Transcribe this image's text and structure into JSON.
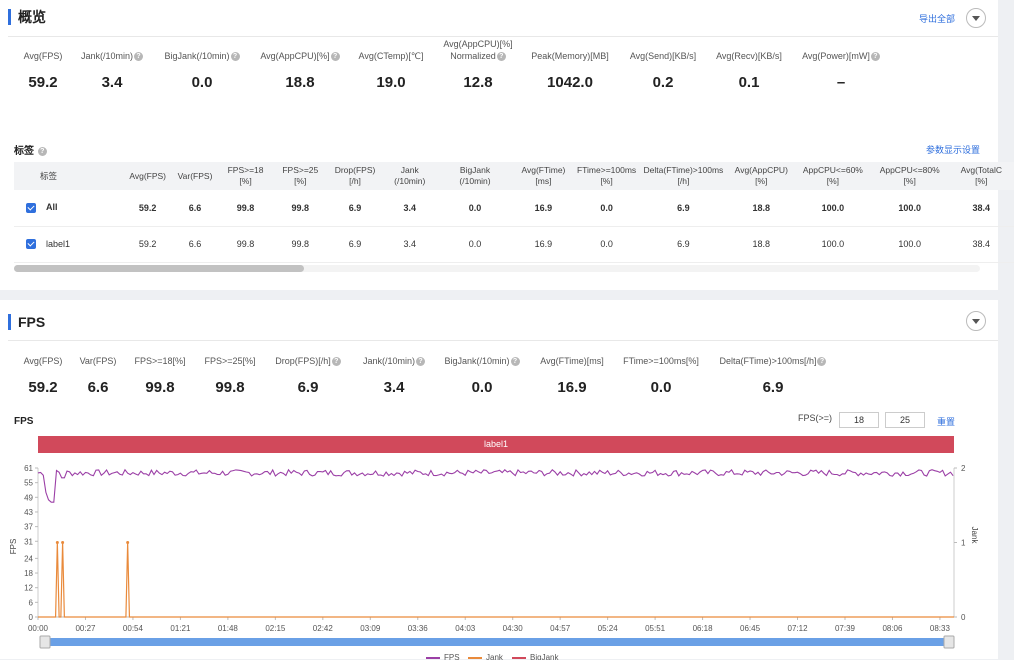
{
  "overview": {
    "title": "概览",
    "export_label": "导出全部",
    "metrics": [
      {
        "label": "Avg(FPS)",
        "value": "59.2",
        "help": false
      },
      {
        "label": "Jank(/10min)",
        "value": "3.4",
        "help": true
      },
      {
        "label": "BigJank(/10min)",
        "value": "0.0",
        "help": true
      },
      {
        "label": "Avg(AppCPU)[%]",
        "value": "18.8",
        "help": true
      },
      {
        "label": "Avg(CTemp)[℃]",
        "value": "19.0",
        "help": false
      },
      {
        "label": "Avg(AppCPU)[%]",
        "label2": "Normalized",
        "value": "12.8",
        "help": true
      },
      {
        "label": "Peak(Memory)[MB]",
        "value": "1042.0",
        "help": false
      },
      {
        "label": "Avg(Send)[KB/s]",
        "value": "0.2",
        "help": false
      },
      {
        "label": "Avg(Recv)[KB/s]",
        "value": "0.1",
        "help": false
      },
      {
        "label": "Avg(Power)[mW]",
        "value": "–",
        "help": true
      }
    ]
  },
  "tags": {
    "title": "标签",
    "settings_label": "参数显示设置",
    "columns": [
      {
        "l1": "标签",
        "l2": ""
      },
      {
        "l1": "Avg(FPS)",
        "l2": ""
      },
      {
        "l1": "Var(FPS)",
        "l2": ""
      },
      {
        "l1": "FPS>=18",
        "l2": "[%]"
      },
      {
        "l1": "FPS>=25",
        "l2": "[%]"
      },
      {
        "l1": "Drop(FPS)",
        "l2": "[/h]"
      },
      {
        "l1": "Jank",
        "l2": "(/10min)"
      },
      {
        "l1": "BigJank",
        "l2": "(/10min)"
      },
      {
        "l1": "Avg(FTime)",
        "l2": "[ms]"
      },
      {
        "l1": "FTime>=100ms",
        "l2": "[%]"
      },
      {
        "l1": "Delta(FTime)>100ms",
        "l2": "[/h]"
      },
      {
        "l1": "Avg(AppCPU)",
        "l2": "[%]"
      },
      {
        "l1": "AppCPU<=60%",
        "l2": "[%]"
      },
      {
        "l1": "AppCPU<=80%",
        "l2": "[%]"
      },
      {
        "l1": "Avg(TotalC",
        "l2": "[%]"
      }
    ],
    "rows": [
      {
        "name": "All",
        "cells": [
          "59.2",
          "6.6",
          "99.8",
          "99.8",
          "6.9",
          "3.4",
          "0.0",
          "16.9",
          "0.0",
          "6.9",
          "18.8",
          "100.0",
          "100.0",
          "38.4"
        ]
      },
      {
        "name": "label1",
        "cells": [
          "59.2",
          "6.6",
          "99.8",
          "99.8",
          "6.9",
          "3.4",
          "0.0",
          "16.9",
          "0.0",
          "6.9",
          "18.8",
          "100.0",
          "100.0",
          "38.4"
        ]
      }
    ]
  },
  "fps_section": {
    "title": "FPS",
    "metrics": [
      {
        "label": "Avg(FPS)",
        "value": "59.2",
        "help": false
      },
      {
        "label": "Var(FPS)",
        "value": "6.6",
        "help": false
      },
      {
        "label": "FPS>=18[%]",
        "value": "99.8",
        "help": false
      },
      {
        "label": "FPS>=25[%]",
        "value": "99.8",
        "help": false
      },
      {
        "label": "Drop(FPS)[/h]",
        "value": "6.9",
        "help": true
      },
      {
        "label": "Jank(/10min)",
        "value": "3.4",
        "help": true
      },
      {
        "label": "BigJank(/10min)",
        "value": "0.0",
        "help": true
      },
      {
        "label": "Avg(FTime)[ms]",
        "value": "16.9",
        "help": false
      },
      {
        "label": "FTime>=100ms[%]",
        "value": "0.0",
        "help": false
      },
      {
        "label": "Delta(FTime)>100ms[/h]",
        "value": "6.9",
        "help": true
      }
    ],
    "chart_title": "FPS",
    "filter_label": "FPS(>=)",
    "filter_values": [
      "18",
      "25"
    ],
    "reset_label": "重置",
    "label_bar": "label1"
  },
  "chart_data": {
    "type": "line",
    "title": "FPS",
    "ylabel": "FPS",
    "y2label": "Jank",
    "ylim": [
      0,
      61
    ],
    "y2lim": [
      0,
      2
    ],
    "yticks": [
      0,
      6,
      12,
      18,
      24,
      31,
      37,
      43,
      49,
      55,
      61
    ],
    "y2ticks": [
      0,
      1,
      2
    ],
    "xlim_seconds": [
      0,
      521
    ],
    "xticks": [
      "00:00",
      "00:27",
      "00:54",
      "01:21",
      "01:48",
      "02:15",
      "02:42",
      "03:09",
      "03:36",
      "04:03",
      "04:30",
      "04:57",
      "05:24",
      "05:51",
      "06:18",
      "06:45",
      "07:12",
      "07:39",
      "08:06",
      "08:33"
    ],
    "series": [
      {
        "name": "FPS",
        "color": "#9b3fa6",
        "axis": "left",
        "baseline": 59,
        "dips": [
          {
            "t": 5,
            "v": 51
          },
          {
            "t": 6,
            "v": 48
          },
          {
            "t": 8,
            "v": 47
          },
          {
            "t": 14,
            "v": 57
          }
        ]
      },
      {
        "name": "Jank",
        "color": "#e98a3b",
        "axis": "right",
        "points": [
          {
            "t": 11,
            "v": 1
          },
          {
            "t": 14,
            "v": 1
          },
          {
            "t": 51,
            "v": 1
          }
        ]
      },
      {
        "name": "BigJank",
        "color": "#d1495b",
        "axis": "right",
        "points": []
      }
    ]
  }
}
